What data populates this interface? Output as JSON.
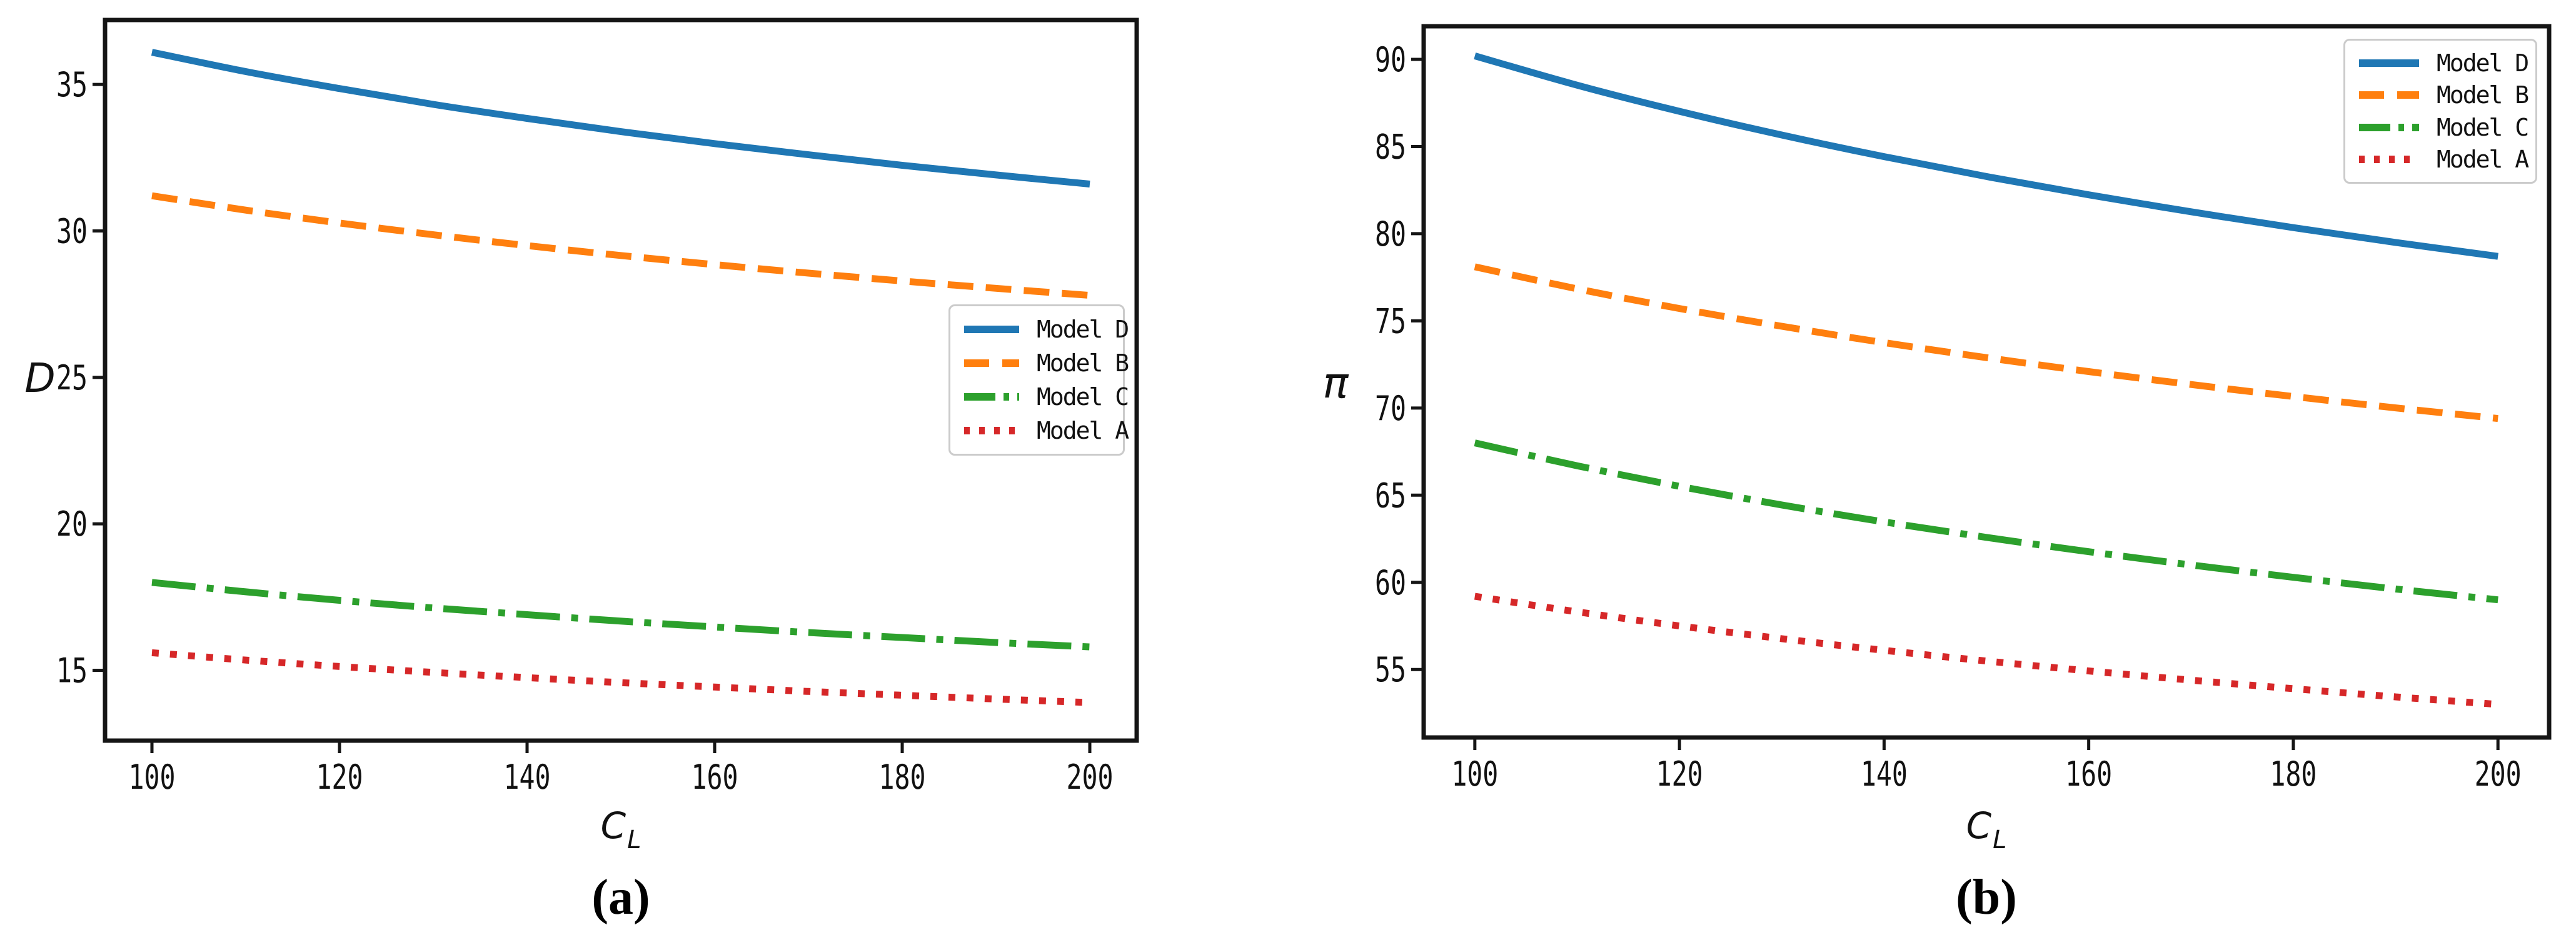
{
  "figure": {
    "background": "#ffffff",
    "spine_color": "#151515",
    "text_color": "#111111",
    "accent_colors": {
      "model_d_blue": "#1f77b4",
      "model_b_orange": "#ff7f0e",
      "model_c_green": "#2ca02c",
      "model_a_red": "#d62728"
    }
  },
  "chart_data": [
    {
      "type": "line",
      "caption": "(a)",
      "ylabel": "D",
      "xlabel": {
        "base": "C",
        "sub": "L"
      },
      "x": [
        100,
        110,
        120,
        130,
        140,
        150,
        160,
        170,
        180,
        190,
        200
      ],
      "xlim": [
        95,
        205
      ],
      "ylim": [
        12.6,
        37.2
      ],
      "xticks": [
        100,
        120,
        140,
        160,
        180,
        200
      ],
      "yticks": [
        15,
        20,
        25,
        30,
        35
      ],
      "grid": false,
      "legend_position": "center-right",
      "series": [
        {
          "name": "Model D",
          "color": "#1f77b4",
          "style": "solid",
          "values": [
            36.1,
            35.44,
            34.86,
            34.32,
            33.84,
            33.39,
            32.98,
            32.6,
            32.24,
            31.91,
            31.6
          ]
        },
        {
          "name": "Model B",
          "color": "#ff7f0e",
          "style": "dashed",
          "values": [
            31.2,
            30.71,
            30.27,
            29.87,
            29.5,
            29.16,
            28.85,
            28.56,
            28.29,
            28.04,
            27.8
          ]
        },
        {
          "name": "Model C",
          "color": "#2ca02c",
          "style": "dashdot",
          "values": [
            18.0,
            17.68,
            17.39,
            17.13,
            16.9,
            16.68,
            16.48,
            16.29,
            16.12,
            15.95,
            15.8
          ]
        },
        {
          "name": "Model A",
          "color": "#d62728",
          "style": "dotted",
          "values": [
            15.6,
            15.35,
            15.13,
            14.93,
            14.75,
            14.58,
            14.43,
            14.28,
            14.15,
            14.02,
            13.9
          ]
        }
      ]
    },
    {
      "type": "line",
      "caption": "(b)",
      "ylabel": "π",
      "xlabel": {
        "base": "C",
        "sub": "L"
      },
      "x": [
        100,
        110,
        120,
        130,
        140,
        150,
        160,
        170,
        180,
        190,
        200
      ],
      "xlim": [
        95,
        205
      ],
      "ylim": [
        51.1,
        91.9
      ],
      "xticks": [
        100,
        120,
        140,
        160,
        180,
        200
      ],
      "yticks": [
        55,
        60,
        65,
        70,
        75,
        80,
        85,
        90
      ],
      "grid": false,
      "legend_position": "upper-right",
      "series": [
        {
          "name": "Model D",
          "color": "#1f77b4",
          "style": "solid",
          "values": [
            90.2,
            88.52,
            87.02,
            85.66,
            84.42,
            83.28,
            82.23,
            81.26,
            80.35,
            79.5,
            78.7
          ]
        },
        {
          "name": "Model B",
          "color": "#ff7f0e",
          "style": "dashed",
          "values": [
            78.1,
            76.84,
            75.71,
            74.69,
            73.75,
            72.89,
            72.09,
            71.35,
            70.66,
            70.01,
            69.4
          ]
        },
        {
          "name": "Model C",
          "color": "#2ca02c",
          "style": "dashdot",
          "values": [
            68.0,
            66.69,
            65.51,
            64.44,
            63.47,
            62.58,
            61.76,
            61.0,
            60.29,
            59.62,
            59.0
          ]
        },
        {
          "name": "Model A",
          "color": "#d62728",
          "style": "dotted",
          "values": [
            59.2,
            58.31,
            57.5,
            56.77,
            56.1,
            55.49,
            54.92,
            54.39,
            53.9,
            53.43,
            53.0
          ]
        }
      ]
    }
  ]
}
